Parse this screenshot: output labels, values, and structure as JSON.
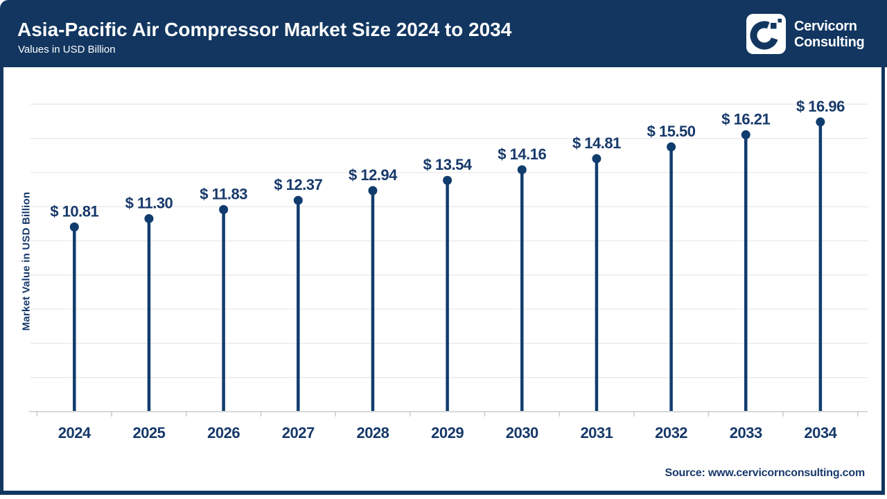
{
  "header": {
    "title": "Asia-Pacific Air Compressor Market Size 2024 to 2034",
    "subtitle": "Values in USD Billion",
    "brand_line1": "Cervicorn",
    "brand_line2": "Consulting"
  },
  "chart_data": {
    "type": "bar",
    "variant": "lollipop",
    "title": "Asia-Pacific Air Compressor Market Size 2024 to 2034",
    "categories": [
      "2024",
      "2025",
      "2026",
      "2027",
      "2028",
      "2029",
      "2030",
      "2031",
      "2032",
      "2033",
      "2034"
    ],
    "values": [
      10.81,
      11.3,
      11.83,
      12.37,
      12.94,
      13.54,
      14.16,
      14.81,
      15.5,
      16.21,
      16.96
    ],
    "point_labels": [
      "$ 10.81",
      "$ 11.30",
      "$ 11.83",
      "$ 12.37",
      "$ 12.94",
      "$ 13.54",
      "$ 14.16",
      "$ 14.81",
      "$ 15.50",
      "$ 16.21",
      "$ 16.96"
    ],
    "xlabel": "",
    "ylabel": "Market Value in USD Billion",
    "unit": "USD Billion",
    "ylim": [
      0,
      18.5
    ],
    "grid": "horizontal",
    "grid_step": 2,
    "y_tick_labels_shown": false,
    "legend": "none"
  },
  "footer": {
    "source": "Source: www.cervicornconsulting.com"
  },
  "colors": {
    "header_bg": "#123660",
    "accent": "#113c6e",
    "label_text": "#17396a",
    "grid": "#e8e8e8",
    "axis": "#c9cdd2",
    "background": "#ffffff",
    "logo_text": "#ffffff"
  }
}
